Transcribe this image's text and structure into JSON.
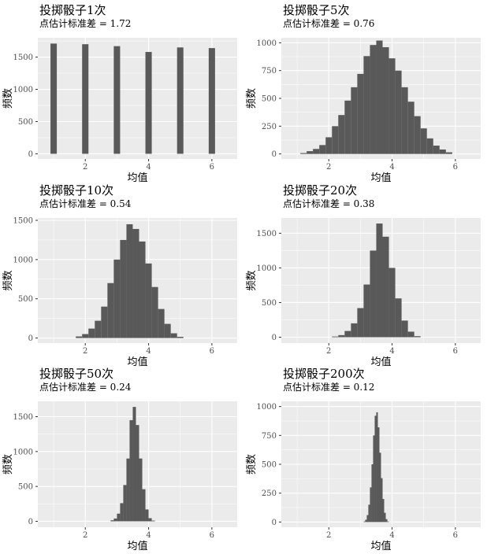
{
  "chart_data": [
    {
      "type": "bar",
      "title": "投掷骰子1次",
      "subtitle": "点估计标准差 = 1.72",
      "xlabel": "均值",
      "ylabel": "频数",
      "xlim": [
        0.5,
        6.8
      ],
      "ylim": [
        -80,
        1800
      ],
      "xticks": [
        2,
        4,
        6
      ],
      "yticks": [
        0,
        500,
        1000,
        1500
      ],
      "bin_width": 0.2,
      "x": [
        1,
        2,
        3,
        4,
        5,
        6
      ],
      "values": [
        1710,
        1700,
        1670,
        1580,
        1650,
        1640
      ]
    },
    {
      "type": "bar",
      "title": "投掷骰子5次",
      "subtitle": "点估计标准差 = 0.76",
      "xlabel": "均值",
      "ylabel": "频数",
      "xlim": [
        0.5,
        6.8
      ],
      "ylim": [
        -45,
        1045
      ],
      "xticks": [
        2,
        4,
        6
      ],
      "yticks": [
        0,
        250,
        500,
        750,
        1000
      ],
      "bin_width": 0.2,
      "x": [
        1.2,
        1.4,
        1.6,
        1.8,
        2.0,
        2.2,
        2.4,
        2.6,
        2.8,
        3.0,
        3.2,
        3.4,
        3.6,
        3.8,
        4.0,
        4.2,
        4.4,
        4.6,
        4.8,
        5.0,
        5.2,
        5.4,
        5.6,
        5.8
      ],
      "values": [
        8,
        25,
        45,
        80,
        150,
        250,
        350,
        480,
        600,
        720,
        880,
        980,
        1020,
        960,
        860,
        750,
        600,
        470,
        340,
        230,
        140,
        75,
        40,
        15
      ]
    },
    {
      "type": "bar",
      "title": "投掷骰子10次",
      "subtitle": "点估计标准差 = 0.54",
      "xlabel": "均值",
      "ylabel": "频数",
      "xlim": [
        0.5,
        6.8
      ],
      "ylim": [
        -65,
        1530
      ],
      "xticks": [
        2,
        4,
        6
      ],
      "yticks": [
        0,
        500,
        1000,
        1500
      ],
      "bin_width": 0.2,
      "x": [
        1.8,
        2.0,
        2.2,
        2.4,
        2.6,
        2.8,
        3.0,
        3.2,
        3.4,
        3.6,
        3.8,
        4.0,
        4.2,
        4.4,
        4.6,
        4.8,
        5.0
      ],
      "values": [
        20,
        50,
        120,
        220,
        400,
        700,
        1000,
        1250,
        1450,
        1390,
        1230,
        950,
        650,
        370,
        180,
        60,
        15
      ]
    },
    {
      "type": "bar",
      "title": "投掷骰子20次",
      "subtitle": "点估计标准差 = 0.38",
      "xlabel": "均值",
      "ylabel": "频数",
      "xlim": [
        0.5,
        6.8
      ],
      "ylim": [
        -85,
        1720
      ],
      "xticks": [
        2,
        4,
        6
      ],
      "yticks": [
        0,
        500,
        1000,
        1500
      ],
      "bin_width": 0.2,
      "x": [
        2.2,
        2.4,
        2.6,
        2.8,
        3.0,
        3.2,
        3.4,
        3.6,
        3.8,
        4.0,
        4.2,
        4.4,
        4.6,
        4.8
      ],
      "values": [
        10,
        30,
        90,
        200,
        420,
        760,
        1250,
        1640,
        1450,
        1000,
        560,
        240,
        80,
        15
      ]
    },
    {
      "type": "bar",
      "title": "投掷骰子50次",
      "subtitle": "点估计标准差 = 0.24",
      "xlabel": "均值",
      "ylabel": "频数",
      "xlim": [
        0.5,
        6.8
      ],
      "ylim": [
        -85,
        1720
      ],
      "xticks": [
        2,
        4,
        6
      ],
      "yticks": [
        0,
        500,
        1000,
        1500
      ],
      "bin_width": 0.1,
      "x": [
        2.85,
        2.95,
        3.05,
        3.15,
        3.25,
        3.35,
        3.45,
        3.55,
        3.65,
        3.75,
        3.85,
        3.95,
        4.05,
        4.15
      ],
      "values": [
        15,
        40,
        110,
        260,
        520,
        900,
        1450,
        1640,
        1380,
        900,
        460,
        170,
        45,
        10
      ]
    },
    {
      "type": "bar",
      "title": "投掷骰子200次",
      "subtitle": "点估计标准差 = 0.12",
      "xlabel": "均值",
      "ylabel": "频数",
      "xlim": [
        0.5,
        6.8
      ],
      "ylim": [
        -45,
        1045
      ],
      "xticks": [
        2,
        4,
        6
      ],
      "yticks": [
        0,
        250,
        500,
        750,
        1000
      ],
      "bin_width": 0.05,
      "x": [
        3.125,
        3.175,
        3.225,
        3.275,
        3.325,
        3.375,
        3.425,
        3.475,
        3.525,
        3.575,
        3.625,
        3.675,
        3.725,
        3.775,
        3.825,
        3.875
      ],
      "values": [
        5,
        20,
        60,
        150,
        300,
        500,
        750,
        920,
        950,
        820,
        600,
        380,
        200,
        80,
        25,
        5
      ]
    }
  ]
}
